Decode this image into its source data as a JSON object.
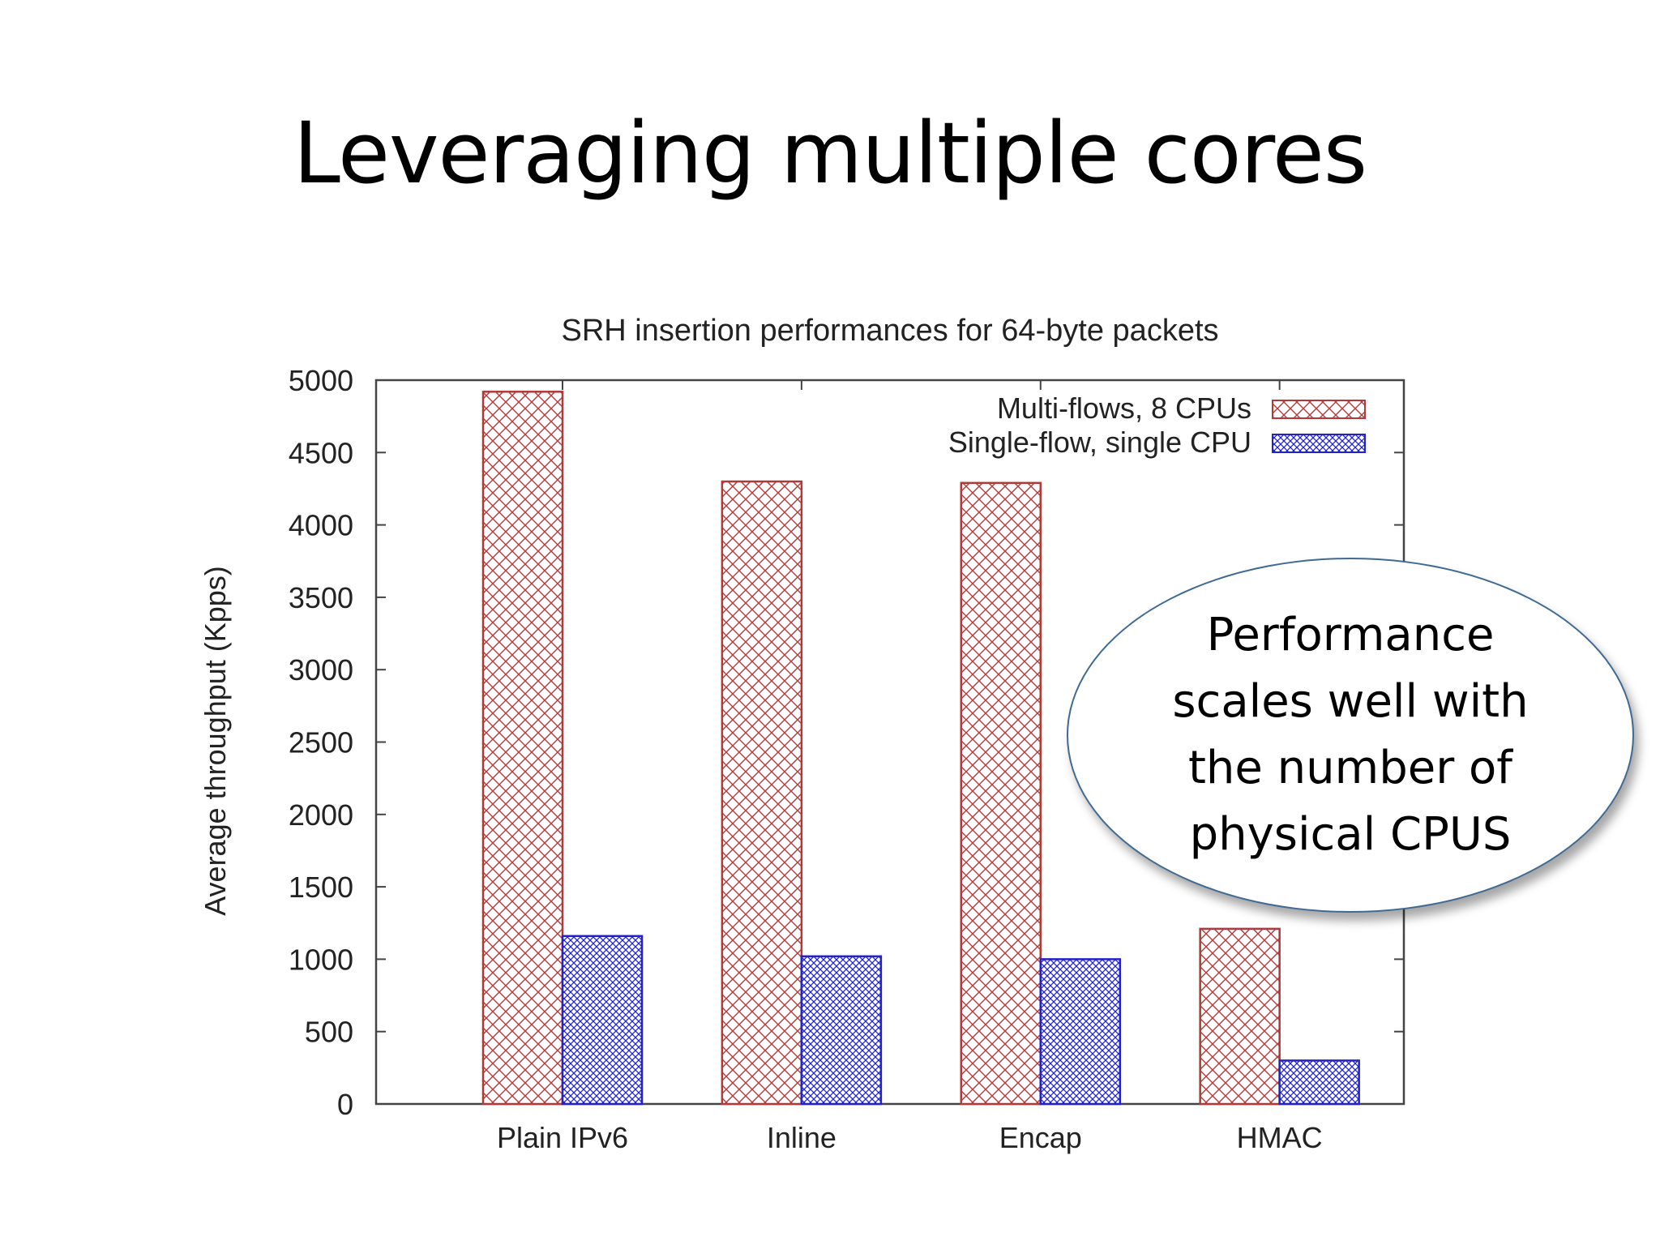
{
  "slide": {
    "title": "Leveraging multiple cores"
  },
  "callout": {
    "text": "Performance\nscales well with\nthe number of\nphysical CPUS"
  },
  "chart_data": {
    "type": "bar",
    "title": "SRH insertion performances for 64-byte packets",
    "xlabel": "",
    "ylabel": "Average throughput (Kpps)",
    "categories": [
      "Plain IPv6",
      "Inline",
      "Encap",
      "HMAC"
    ],
    "ylim": [
      0,
      5000
    ],
    "yticks": [
      0,
      500,
      1000,
      1500,
      2000,
      2500,
      3000,
      3500,
      4000,
      4500,
      5000
    ],
    "grid": false,
    "legend_position": "top-right",
    "series": [
      {
        "name": "Multi-flows, 8 CPUs",
        "values": [
          4920,
          4300,
          4290,
          1210
        ],
        "color": "#b03a3a",
        "pattern": "sparse-crosshatch"
      },
      {
        "name": "Single-flow, single CPU",
        "values": [
          1160,
          1020,
          1000,
          300
        ],
        "color": "#2222cc",
        "pattern": "dense-crosshatch"
      }
    ]
  }
}
